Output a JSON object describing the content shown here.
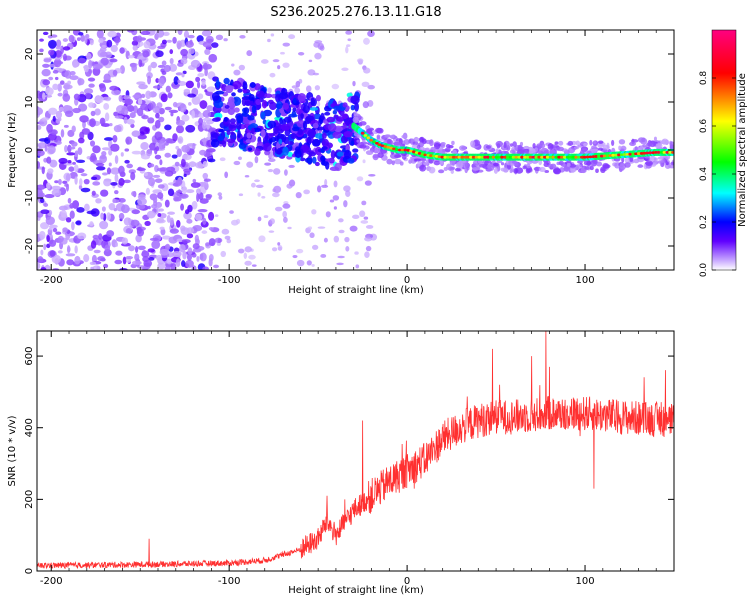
{
  "figure": {
    "title": "S236.2025.276.13.11.G18"
  },
  "chart_data": [
    {
      "type": "heatmap",
      "title": "S236.2025.276.13.11.G18",
      "xlabel": "Height of straight line (km)",
      "ylabel": "Frequency (Hz)",
      "xlim": [
        -208,
        150
      ],
      "ylim": [
        -25,
        25
      ],
      "x_ticks": [
        -200,
        -100,
        0,
        100
      ],
      "x_tick_labels": [
        "-200",
        "-100",
        "0",
        "100"
      ],
      "y_ticks": [
        -20,
        -10,
        0,
        10,
        20
      ],
      "y_tick_labels": [
        "-20",
        "-10",
        "0",
        "10",
        "20"
      ],
      "colorbar": {
        "label": "Normalized spectral amplitude",
        "range": [
          0,
          1
        ],
        "ticks": [
          0.0,
          0.2,
          0.4,
          0.6,
          0.8
        ],
        "tick_labels": [
          "0.0",
          "0.2",
          "0.4",
          "0.6",
          "0.8"
        ],
        "colors": [
          "#ffffff",
          "#b070ff",
          "#4000ff",
          "#0000ff",
          "#00ffff",
          "#00ff00",
          "#ffff00",
          "#ff0000",
          "#ff00a0"
        ]
      },
      "dominant_frequency_ridge": {
        "x": [
          -100,
          -80,
          -60,
          -50,
          -40,
          -30,
          -25,
          -20,
          -15,
          -10,
          -5,
          0,
          5,
          10,
          20,
          40,
          60,
          80,
          100,
          120,
          140,
          150
        ],
        "y": [
          8,
          6,
          5,
          4,
          3,
          5,
          3.5,
          2,
          1,
          0.5,
          0,
          0,
          -0.5,
          -1,
          -1.5,
          -1.5,
          -1.5,
          -1.5,
          -1.5,
          -1,
          -0.5,
          -0.5
        ]
      }
    },
    {
      "type": "line",
      "xlabel": "Height of straight line (km)",
      "ylabel": "SNR (10 * v/v)",
      "xlim": [
        -208,
        150
      ],
      "ylim": [
        0,
        670
      ],
      "x_ticks": [
        -200,
        -100,
        0,
        100
      ],
      "x_tick_labels": [
        "-200",
        "-100",
        "0",
        "100"
      ],
      "y_ticks": [
        0,
        200,
        400,
        600
      ],
      "y_tick_labels": [
        "0",
        "200",
        "400",
        "600"
      ],
      "color": "#ff3030",
      "trend": {
        "x": [
          -208,
          -150,
          -100,
          -80,
          -60,
          -50,
          -45,
          -40,
          -30,
          -20,
          -10,
          0,
          10,
          20,
          30,
          40,
          50,
          60,
          80,
          100,
          120,
          150
        ],
        "y": [
          15,
          18,
          22,
          30,
          60,
          90,
          140,
          100,
          170,
          210,
          250,
          280,
          310,
          370,
          400,
          420,
          430,
          430,
          440,
          440,
          430,
          420
        ]
      },
      "spikes": {
        "x": [
          -145,
          -45,
          -35,
          -25,
          48,
          52,
          70,
          78,
          80,
          105
        ],
        "y": [
          90,
          210,
          200,
          420,
          620,
          520,
          600,
          670,
          570,
          230
        ]
      }
    }
  ]
}
